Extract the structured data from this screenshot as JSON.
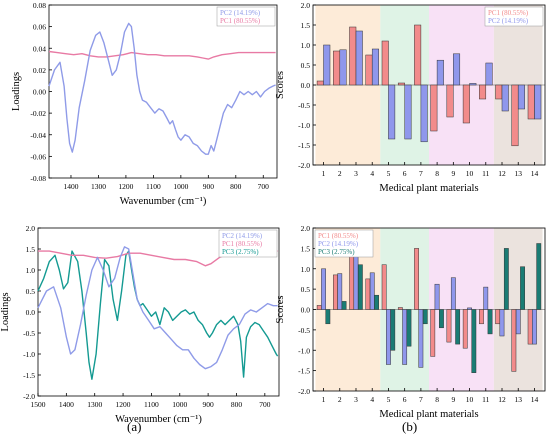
{
  "panel_labels": [
    "(a)",
    "(b)"
  ],
  "chart_data": [
    {
      "type": "line",
      "xlabel": "Wavenumber (cm⁻¹)",
      "ylabel": "Loadings",
      "xlim": [
        1480,
        650
      ],
      "xticks": [
        1400,
        1300,
        1200,
        1100,
        1000,
        900,
        800,
        700
      ],
      "ylim": [
        -0.08,
        0.08
      ],
      "yticks": [
        0.08,
        0.06,
        0.04,
        0.02,
        0.0,
        -0.02,
        -0.04,
        -0.06,
        -0.08
      ],
      "ytick_labels": [
        "0.08",
        "0.06",
        "0.04",
        "0.02",
        "0.00",
        "-0.02",
        "-0.04",
        "-0.06",
        "-0.08"
      ],
      "legend_position": "top-right",
      "series": [
        {
          "name": "PC2 (14.19%)",
          "color": "#8f9be8",
          "x": [
            1480,
            1460,
            1440,
            1425,
            1415,
            1405,
            1395,
            1385,
            1370,
            1350,
            1330,
            1310,
            1295,
            1280,
            1265,
            1250,
            1235,
            1220,
            1205,
            1190,
            1180,
            1170,
            1160,
            1150,
            1140,
            1125,
            1110,
            1095,
            1080,
            1065,
            1050,
            1040,
            1030,
            1020,
            1010,
            1000,
            985,
            970,
            955,
            940,
            925,
            910,
            900,
            890,
            880,
            870,
            860,
            845,
            830,
            815,
            800,
            785,
            770,
            755,
            740,
            725,
            710,
            695,
            680,
            665,
            655
          ],
          "y": [
            0.005,
            0.02,
            0.027,
            0.005,
            -0.025,
            -0.048,
            -0.056,
            -0.045,
            -0.015,
            0.01,
            0.038,
            0.052,
            0.055,
            0.045,
            0.03,
            0.015,
            0.02,
            0.035,
            0.055,
            0.063,
            0.06,
            0.04,
            0.015,
            0.0,
            -0.008,
            -0.01,
            -0.015,
            -0.02,
            -0.016,
            -0.018,
            -0.025,
            -0.03,
            -0.027,
            -0.035,
            -0.042,
            -0.045,
            -0.04,
            -0.042,
            -0.048,
            -0.05,
            -0.055,
            -0.058,
            -0.058,
            -0.05,
            -0.055,
            -0.045,
            -0.035,
            -0.02,
            -0.012,
            -0.015,
            -0.008,
            0.0,
            -0.003,
            0.0,
            -0.003,
            0.0,
            -0.005,
            0.0,
            0.003,
            0.005,
            0.006
          ]
        },
        {
          "name": "PC1 (80.55%)",
          "color": "#e87aa4",
          "x": [
            1480,
            1450,
            1420,
            1390,
            1360,
            1330,
            1300,
            1270,
            1240,
            1210,
            1180,
            1150,
            1120,
            1090,
            1060,
            1030,
            1000,
            970,
            940,
            920,
            900,
            880,
            850,
            820,
            790,
            760,
            730,
            700,
            670,
            655
          ],
          "y": [
            0.037,
            0.036,
            0.035,
            0.034,
            0.035,
            0.033,
            0.032,
            0.032,
            0.033,
            0.034,
            0.036,
            0.035,
            0.034,
            0.034,
            0.033,
            0.033,
            0.033,
            0.033,
            0.032,
            0.031,
            0.03,
            0.032,
            0.034,
            0.035,
            0.036,
            0.036,
            0.036,
            0.036,
            0.036,
            0.036
          ]
        }
      ]
    },
    {
      "type": "bar",
      "xlabel": "Medical plant materials",
      "ylabel": "Scores",
      "categories": [
        "1",
        "2",
        "3",
        "4",
        "5",
        "6",
        "7",
        "8",
        "9",
        "10",
        "11",
        "12",
        "13",
        "14"
      ],
      "ylim": [
        -2.0,
        2.0
      ],
      "yticks": [
        2.0,
        1.5,
        1.0,
        0.5,
        0.0,
        -0.5,
        -1.0,
        -1.5,
        -2.0
      ],
      "ytick_labels": [
        "2.0",
        "1.5",
        "1.0",
        "0.5",
        "0.0",
        "-0.5",
        "-1.0",
        "-1.5",
        "-2.0"
      ],
      "legend_position": "top-right",
      "bands": [
        {
          "from": 0.5,
          "to": 4.5,
          "color": "#fdebd8"
        },
        {
          "from": 4.5,
          "to": 7.5,
          "color": "#dff3e6"
        },
        {
          "from": 7.5,
          "to": 11.5,
          "color": "#f8e1f6"
        },
        {
          "from": 11.5,
          "to": 14.5,
          "color": "#ebe3de"
        }
      ],
      "series": [
        {
          "name": "PC1 (80.55%)",
          "color": "#f28b8b",
          "values": [
            0.1,
            0.85,
            1.45,
            0.75,
            1.1,
            0.05,
            1.5,
            -1.15,
            -0.8,
            -0.95,
            -0.35,
            -0.35,
            -1.52,
            -0.85
          ]
        },
        {
          "name": "PC2 (14.19%)",
          "color": "#8f97ec",
          "values": [
            1.0,
            0.88,
            1.35,
            0.9,
            -1.35,
            -1.35,
            -1.42,
            0.62,
            0.78,
            0.04,
            0.55,
            -0.65,
            -0.6,
            -0.85
          ]
        }
      ]
    },
    {
      "type": "line",
      "xlabel": "Wavenumber (cm⁻¹)",
      "ylabel": "Loadings",
      "xlim": [
        1500,
        650
      ],
      "xticks": [
        1500,
        1400,
        1300,
        1200,
        1100,
        1000,
        900,
        800,
        700
      ],
      "ylim": [
        -2.0,
        2.0
      ],
      "yticks": [
        2.0,
        1.5,
        1.0,
        0.5,
        0.0,
        -0.5,
        -1.0,
        -1.5,
        -2.0
      ],
      "ytick_labels": [
        "2.0",
        "1.5",
        "1.0",
        "0.5",
        "0.0",
        "-0.5",
        "-1.0",
        "-1.5",
        "-2.0"
      ],
      "legend_position": "top-right",
      "series": [
        {
          "name": "PC2 (14.19%)",
          "color": "#8f9be8",
          "x": [
            1500,
            1470,
            1445,
            1420,
            1400,
            1385,
            1370,
            1350,
            1330,
            1310,
            1290,
            1270,
            1250,
            1230,
            1210,
            1195,
            1180,
            1165,
            1150,
            1130,
            1110,
            1090,
            1070,
            1050,
            1030,
            1010,
            990,
            970,
            950,
            930,
            910,
            890,
            870,
            850,
            830,
            810,
            790,
            770,
            750,
            730,
            710,
            690,
            670,
            655
          ],
          "y": [
            0.1,
            0.5,
            0.6,
            0.1,
            -0.6,
            -1.0,
            -0.9,
            -0.3,
            0.4,
            1.0,
            1.3,
            1.0,
            0.6,
            0.8,
            1.3,
            1.55,
            1.5,
            0.9,
            0.3,
            0.0,
            -0.2,
            -0.4,
            -0.35,
            -0.5,
            -0.65,
            -0.8,
            -0.9,
            -0.9,
            -1.1,
            -1.25,
            -1.35,
            -1.3,
            -1.2,
            -0.9,
            -0.55,
            -0.4,
            -0.3,
            -0.05,
            0.05,
            0.0,
            0.1,
            0.2,
            0.15,
            0.15
          ]
        },
        {
          "name": "PC1 (80.55%)",
          "color": "#e87aa4",
          "x": [
            1500,
            1460,
            1420,
            1380,
            1340,
            1300,
            1260,
            1220,
            1180,
            1140,
            1100,
            1060,
            1020,
            980,
            940,
            910,
            890,
            860,
            820,
            780,
            740,
            700,
            655
          ],
          "y": [
            1.45,
            1.45,
            1.4,
            1.35,
            1.35,
            1.3,
            1.28,
            1.32,
            1.4,
            1.4,
            1.35,
            1.3,
            1.25,
            1.25,
            1.2,
            1.1,
            1.15,
            1.3,
            1.4,
            1.42,
            1.45,
            1.45,
            1.45
          ]
        },
        {
          "name": "PC3 (2.75%)",
          "color": "#149a92",
          "x": [
            1500,
            1480,
            1460,
            1440,
            1425,
            1410,
            1395,
            1380,
            1360,
            1345,
            1330,
            1320,
            1310,
            1295,
            1280,
            1265,
            1250,
            1235,
            1220,
            1205,
            1190,
            1180,
            1170,
            1160,
            1150,
            1140,
            1130,
            1115,
            1100,
            1085,
            1070,
            1055,
            1040,
            1025,
            1010,
            995,
            980,
            965,
            950,
            935,
            920,
            905,
            895,
            885,
            870,
            855,
            840,
            825,
            810,
            795,
            785,
            775,
            765,
            750,
            735,
            720,
            705,
            690,
            675,
            660,
            655
          ],
          "y": [
            0.5,
            0.8,
            1.2,
            1.35,
            1.0,
            0.55,
            0.7,
            1.45,
            1.2,
            0.5,
            -0.5,
            -1.2,
            -1.6,
            -1.0,
            0.2,
            1.25,
            1.1,
            0.3,
            -0.2,
            0.5,
            1.35,
            1.45,
            1.0,
            0.6,
            0.3,
            0.15,
            0.2,
            0.05,
            -0.1,
            0.0,
            -0.3,
            0.1,
            0.0,
            -0.2,
            -0.1,
            0.0,
            0.05,
            -0.05,
            0.0,
            -0.2,
            -0.3,
            -0.5,
            -0.6,
            -0.5,
            -0.3,
            -0.2,
            -0.3,
            -0.2,
            -0.1,
            -0.3,
            -0.7,
            -1.55,
            -0.6,
            -0.35,
            -0.25,
            -0.3,
            -0.45,
            -0.6,
            -0.8,
            -1.0,
            -1.05
          ]
        }
      ]
    },
    {
      "type": "bar",
      "xlabel": "Medical plant materials",
      "ylabel": "Scores",
      "categories": [
        "1",
        "2",
        "3",
        "4",
        "5",
        "6",
        "7",
        "8",
        "9",
        "10",
        "11",
        "12",
        "13",
        "14"
      ],
      "ylim": [
        -2.0,
        2.0
      ],
      "yticks": [
        2.0,
        1.5,
        1.0,
        0.5,
        0.0,
        -0.5,
        -1.0,
        -1.5,
        -2.0
      ],
      "ytick_labels": [
        "2.0",
        "1.5",
        "1.0",
        "0.5",
        "0.0",
        "-0.5",
        "-1.0",
        "-1.5",
        "-2.0"
      ],
      "legend_position": "top-left",
      "bands": [
        {
          "from": 0.5,
          "to": 4.5,
          "color": "#fdebd8"
        },
        {
          "from": 4.5,
          "to": 7.5,
          "color": "#dff3e6"
        },
        {
          "from": 7.5,
          "to": 11.5,
          "color": "#f8e1f6"
        },
        {
          "from": 11.5,
          "to": 14.5,
          "color": "#ebe3de"
        }
      ],
      "series": [
        {
          "name": "PC1 (80.55%)",
          "color": "#f28b8b",
          "values": [
            0.1,
            0.85,
            1.45,
            0.75,
            1.1,
            0.05,
            1.5,
            -1.15,
            -0.8,
            -0.95,
            -0.35,
            -0.35,
            -1.52,
            -0.85
          ]
        },
        {
          "name": "PC2 (14.19%)",
          "color": "#8f97ec",
          "values": [
            1.0,
            0.88,
            1.35,
            0.9,
            -1.35,
            -1.35,
            -1.42,
            0.62,
            0.78,
            0.04,
            0.55,
            -0.65,
            -0.6,
            -0.85
          ]
        },
        {
          "name": "PC3 (2.75%)",
          "color": "#1a7c74",
          "values": [
            -0.35,
            0.2,
            1.1,
            0.35,
            -1.0,
            -0.9,
            -0.35,
            -0.45,
            -0.85,
            -1.55,
            -0.6,
            1.5,
            1.05,
            1.62
          ]
        }
      ]
    }
  ]
}
